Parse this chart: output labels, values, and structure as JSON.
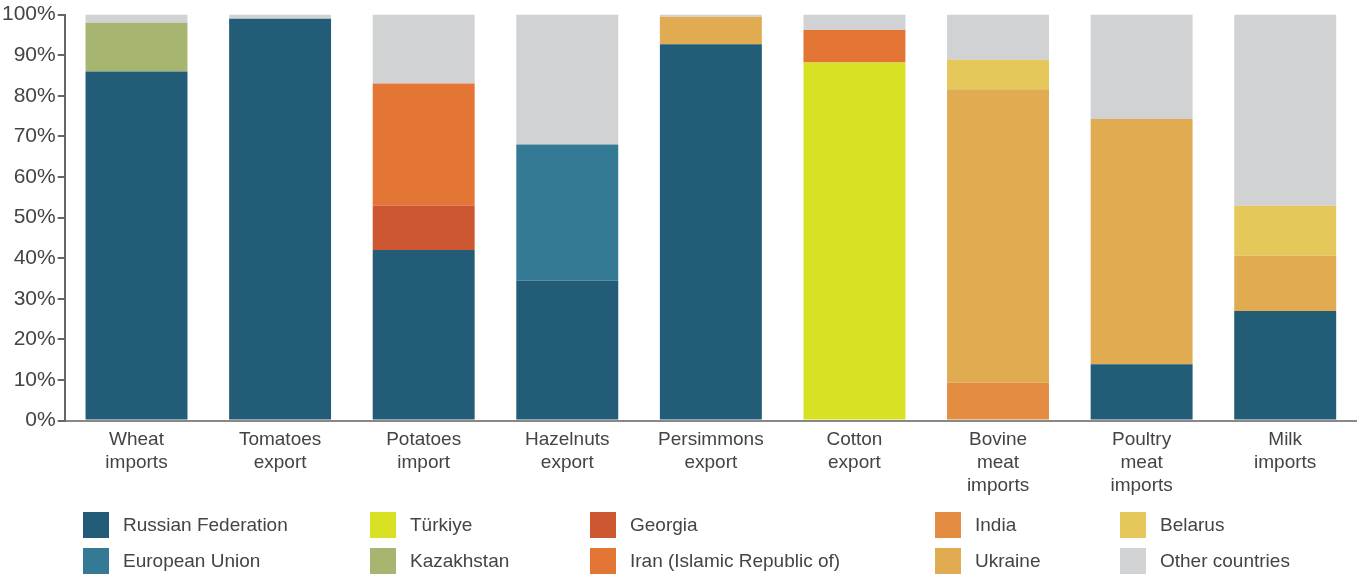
{
  "chart_data": {
    "type": "bar",
    "stacked": true,
    "legend": "bottom",
    "grid": false,
    "categories": [
      "Wheat imports",
      "Tomatoes export",
      "Potatoes import",
      "Hazelnuts export",
      "Persimmons export",
      "Cotton export",
      "Bovine meat imports",
      "Poultry meat imports",
      "Milk imports"
    ],
    "ylim": [
      0,
      100
    ],
    "yticks": [
      {
        "value": 0,
        "label": "0%"
      },
      {
        "value": 10,
        "label": "10%"
      },
      {
        "value": 20,
        "label": "20%"
      },
      {
        "value": 30,
        "label": "30%"
      },
      {
        "value": 40,
        "label": "40%"
      },
      {
        "value": 50,
        "label": "50%"
      },
      {
        "value": 60,
        "label": "60%"
      },
      {
        "value": 70,
        "label": "70%"
      },
      {
        "value": 80,
        "label": "80%"
      },
      {
        "value": 90,
        "label": "90%"
      },
      {
        "value": 100,
        "label": "100%"
      }
    ],
    "series": [
      {
        "name": "Russian Federation",
        "color": "#235c76",
        "values": [
          86,
          99,
          42,
          34.5,
          92.7,
          null,
          null,
          13.9,
          27
        ]
      },
      {
        "name": "European Union",
        "color": "#347a94",
        "values": [
          null,
          null,
          null,
          33.5,
          null,
          null,
          null,
          null,
          null
        ]
      },
      {
        "name": "Türkiye",
        "color": "#d7e023",
        "values": [
          null,
          null,
          null,
          null,
          null,
          88.2,
          null,
          null,
          null
        ]
      },
      {
        "name": "Kazakhstan",
        "color": "#a6b570",
        "values": [
          12,
          null,
          null,
          null,
          null,
          null,
          null,
          null,
          null
        ]
      },
      {
        "name": "Georgia",
        "color": "#cd5730",
        "values": [
          null,
          null,
          11,
          null,
          null,
          null,
          null,
          null,
          null
        ]
      },
      {
        "name": "Iran (Islamic Republic of)",
        "color": "#e37535",
        "values": [
          null,
          null,
          30,
          null,
          null,
          8,
          null,
          null,
          null
        ]
      },
      {
        "name": "India",
        "color": "#e28d42",
        "values": [
          null,
          null,
          null,
          null,
          null,
          null,
          9.3,
          null,
          null
        ]
      },
      {
        "name": "Ukraine",
        "color": "#e1ab52",
        "values": [
          null,
          null,
          null,
          null,
          6.8,
          null,
          72.3,
          60.4,
          13.6
        ]
      },
      {
        "name": "Belarus",
        "color": "#e6c75a",
        "values": [
          null,
          null,
          null,
          null,
          null,
          null,
          7.3,
          null,
          12.3
        ]
      },
      {
        "name": "Other countries",
        "color": "#d1d2d4",
        "values": [
          2,
          1,
          17,
          32,
          0.5,
          3.8,
          11.1,
          25.7,
          47.1
        ]
      }
    ]
  }
}
